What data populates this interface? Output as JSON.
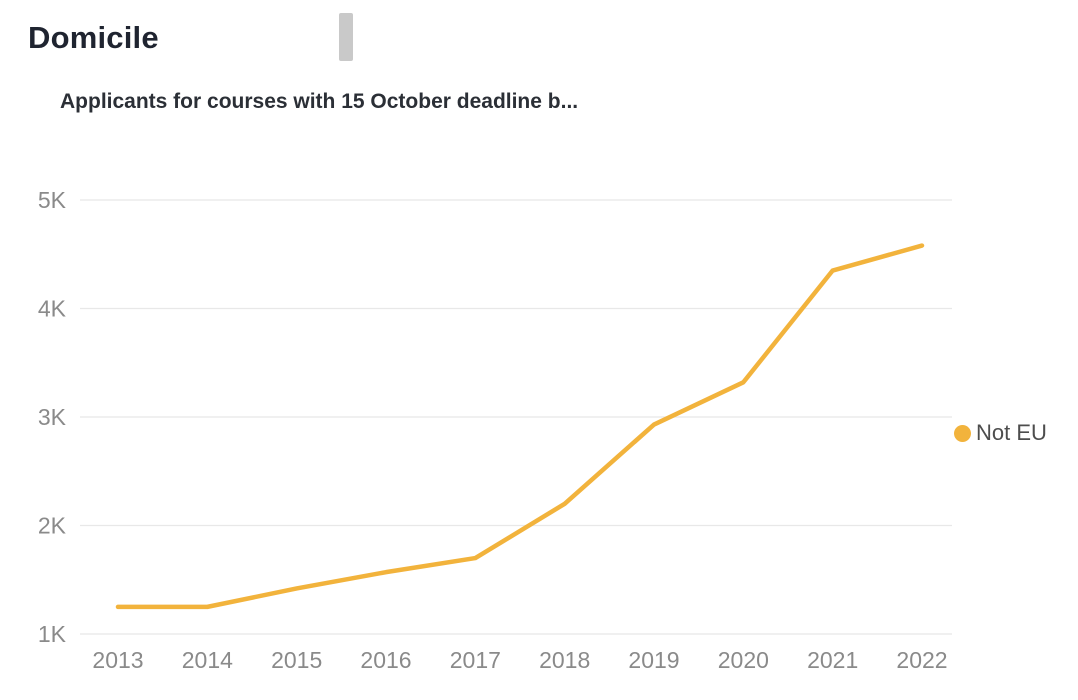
{
  "header": {
    "title": "Domicile"
  },
  "chart": {
    "subtitle": "Applicants for courses with 15 October deadline b...",
    "legend": {
      "label": "Not EU"
    }
  },
  "colors": {
    "line": "#F2B33C",
    "grid": "#e8e8e8",
    "tick": "#8a8a8a",
    "legend_text": "#4d4d4d"
  },
  "chart_data": {
    "type": "line",
    "title": "Applicants for courses with 15 October deadline b...",
    "x": [
      2013,
      2014,
      2015,
      2016,
      2017,
      2018,
      2019,
      2020,
      2021,
      2022
    ],
    "series": [
      {
        "name": "Not EU",
        "color": "#F2B33C",
        "values": [
          1250,
          1250,
          1420,
          1570,
          1700,
          2200,
          2930,
          3320,
          4350,
          4580
        ]
      }
    ],
    "xlabel": "",
    "ylabel": "",
    "ylim": [
      1000,
      5000
    ],
    "yticks": [
      {
        "value": 1000,
        "label": "1K"
      },
      {
        "value": 2000,
        "label": "2K"
      },
      {
        "value": 3000,
        "label": "3K"
      },
      {
        "value": 4000,
        "label": "4K"
      },
      {
        "value": 5000,
        "label": "5K"
      }
    ],
    "grid": true,
    "legend_position": "right"
  }
}
